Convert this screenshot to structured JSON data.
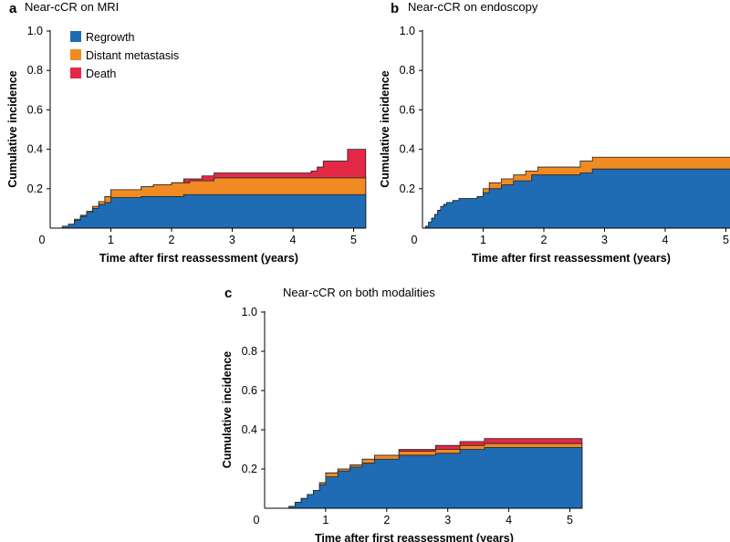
{
  "figure": {
    "colors": {
      "regrowth": "#1f6cb5",
      "metastasis": "#f08a23",
      "death": "#e42848",
      "outline": "#222222"
    }
  },
  "legend": {
    "items": [
      {
        "key": "regrowth",
        "label": "Regrowth",
        "color": "#1f6cb5"
      },
      {
        "key": "metastasis",
        "label": "Distant metastasis",
        "color": "#f08a23"
      },
      {
        "key": "death",
        "label": "Death",
        "color": "#e42848"
      }
    ]
  },
  "chart_data": [
    {
      "type": "area",
      "panel": "a",
      "title": "Near-cCR on MRI",
      "xlabel": "Time after first reassessment (years)",
      "ylabel": "Cumulative incidence",
      "xlim": [
        0,
        5.2
      ],
      "ylim": [
        0,
        1.0
      ],
      "xticks": [
        0,
        1,
        2,
        3,
        4,
        5
      ],
      "yticks": [
        0.2,
        0.4,
        0.6,
        0.8,
        1.0
      ],
      "ytick_labels": [
        "0.2",
        "0.4",
        "0.6",
        "0.8",
        "1.0"
      ],
      "stacked": true,
      "series": [
        {
          "name": "Regrowth",
          "key": "regrowth",
          "x": [
            0,
            0.2,
            0.3,
            0.4,
            0.5,
            0.6,
            0.7,
            0.8,
            0.9,
            1.0,
            1.5,
            2.2,
            5.2
          ],
          "y": [
            0,
            0.01,
            0.02,
            0.04,
            0.06,
            0.08,
            0.1,
            0.12,
            0.13,
            0.155,
            0.16,
            0.17,
            0.17
          ]
        },
        {
          "name": "Distant metastasis",
          "key": "metastasis",
          "x": [
            0,
            0.2,
            0.4,
            0.5,
            0.6,
            0.7,
            0.8,
            0.9,
            1.0,
            1.5,
            1.7,
            2.0,
            2.3,
            2.7,
            3.0,
            5.2
          ],
          "y": [
            0,
            0.01,
            0.045,
            0.065,
            0.085,
            0.11,
            0.135,
            0.16,
            0.195,
            0.21,
            0.22,
            0.23,
            0.24,
            0.255,
            0.255,
            0.255
          ]
        },
        {
          "name": "Death",
          "key": "death",
          "x": [
            0,
            0.2,
            0.4,
            0.5,
            0.6,
            0.7,
            0.8,
            0.9,
            1.0,
            1.5,
            1.7,
            2.0,
            2.2,
            2.5,
            2.7,
            4.3,
            4.4,
            4.5,
            4.9,
            5.2
          ],
          "y": [
            0,
            0.01,
            0.045,
            0.065,
            0.085,
            0.11,
            0.135,
            0.16,
            0.195,
            0.21,
            0.22,
            0.23,
            0.25,
            0.265,
            0.28,
            0.29,
            0.31,
            0.34,
            0.4,
            0.4
          ]
        }
      ]
    },
    {
      "type": "area",
      "panel": "b",
      "title": "Near-cCR on endoscopy",
      "xlabel": "Time after first reassessment (years)",
      "ylabel": "Cumulative incidence",
      "xlim": [
        0,
        5.2
      ],
      "ylim": [
        0,
        1.0
      ],
      "xticks": [
        0,
        1,
        2,
        3,
        4,
        5
      ],
      "yticks": [
        0.2,
        0.4,
        0.6,
        0.8,
        1.0
      ],
      "ytick_labels": [
        "0.2",
        "0.4",
        "0.6",
        "0.8",
        "1.0"
      ],
      "stacked": true,
      "series": [
        {
          "name": "Regrowth",
          "key": "regrowth",
          "x": [
            0,
            0.05,
            0.1,
            0.15,
            0.2,
            0.25,
            0.3,
            0.35,
            0.4,
            0.5,
            0.6,
            0.9,
            1.0,
            1.1,
            1.3,
            1.5,
            1.8,
            2.6,
            2.8,
            5.2
          ],
          "y": [
            0,
            0.01,
            0.03,
            0.05,
            0.07,
            0.09,
            0.11,
            0.12,
            0.13,
            0.14,
            0.15,
            0.16,
            0.18,
            0.2,
            0.22,
            0.24,
            0.27,
            0.28,
            0.3,
            0.3
          ]
        },
        {
          "name": "Distant metastasis",
          "key": "metastasis",
          "x": [
            0,
            0.05,
            0.1,
            0.15,
            0.2,
            0.25,
            0.3,
            0.35,
            0.4,
            0.5,
            0.6,
            0.9,
            1.0,
            1.1,
            1.3,
            1.5,
            1.7,
            1.9,
            2.6,
            2.8,
            5.2
          ],
          "y": [
            0,
            0.01,
            0.03,
            0.05,
            0.07,
            0.09,
            0.11,
            0.12,
            0.13,
            0.14,
            0.15,
            0.16,
            0.2,
            0.23,
            0.25,
            0.27,
            0.29,
            0.31,
            0.34,
            0.36,
            0.36
          ]
        }
      ]
    },
    {
      "type": "area",
      "panel": "c",
      "title": "Near-cCR on both modalities",
      "xlabel": "Time after first reassessment (years)",
      "ylabel": "Cumulative incidence",
      "xlim": [
        0,
        5.2
      ],
      "ylim": [
        0,
        1.0
      ],
      "xticks": [
        0,
        1,
        2,
        3,
        4,
        5
      ],
      "yticks": [
        0.2,
        0.4,
        0.6,
        0.8,
        1.0
      ],
      "ytick_labels": [
        "0.2",
        "0.4",
        "0.6",
        "0.8",
        "1.0"
      ],
      "stacked": true,
      "series": [
        {
          "name": "Regrowth",
          "key": "regrowth",
          "x": [
            0,
            0.4,
            0.5,
            0.6,
            0.7,
            0.8,
            0.9,
            1.0,
            1.2,
            1.4,
            1.6,
            1.8,
            2.2,
            2.8,
            3.2,
            3.6,
            5.2
          ],
          "y": [
            0,
            0.01,
            0.03,
            0.05,
            0.07,
            0.09,
            0.12,
            0.16,
            0.19,
            0.21,
            0.23,
            0.25,
            0.27,
            0.28,
            0.3,
            0.31,
            0.31
          ]
        },
        {
          "name": "Distant metastasis",
          "key": "metastasis",
          "x": [
            0,
            0.4,
            0.5,
            0.6,
            0.7,
            0.8,
            0.9,
            1.0,
            1.2,
            1.4,
            1.6,
            1.8,
            2.2,
            2.8,
            3.2,
            3.6,
            5.2
          ],
          "y": [
            0,
            0.01,
            0.03,
            0.05,
            0.07,
            0.09,
            0.13,
            0.18,
            0.2,
            0.22,
            0.25,
            0.27,
            0.29,
            0.3,
            0.32,
            0.33,
            0.33
          ]
        },
        {
          "name": "Death",
          "key": "death",
          "x": [
            0,
            0.4,
            0.5,
            0.6,
            0.7,
            0.8,
            0.9,
            1.0,
            1.2,
            1.4,
            1.6,
            1.8,
            2.2,
            2.8,
            3.2,
            3.6,
            5.2
          ],
          "y": [
            0,
            0.01,
            0.03,
            0.05,
            0.07,
            0.09,
            0.13,
            0.18,
            0.2,
            0.22,
            0.25,
            0.27,
            0.3,
            0.32,
            0.34,
            0.355,
            0.355
          ]
        }
      ]
    }
  ]
}
